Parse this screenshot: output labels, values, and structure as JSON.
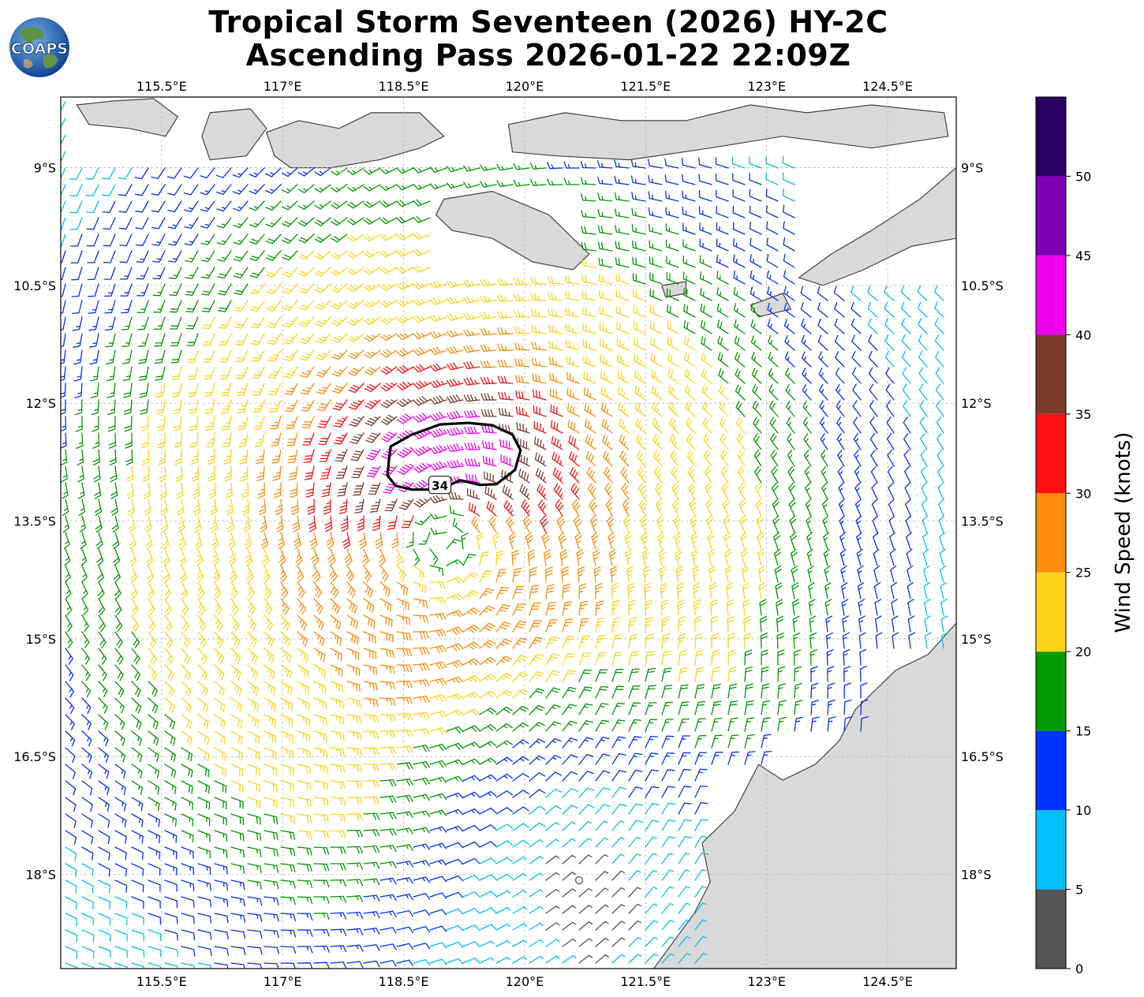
{
  "title": {
    "line1": "Tropical Storm Seventeen (2026) HY-2C",
    "line2": "Ascending Pass 2026-01-22 22:09Z"
  },
  "logo": {
    "text": "COAPS",
    "icon": "globe-logo"
  },
  "map": {
    "lon_range": [
      114.25,
      125.35
    ],
    "lat_range": [
      -19.2,
      -8.1
    ],
    "lon_ticks": [
      {
        "value": 115.5,
        "label": "115.5°E"
      },
      {
        "value": 117.0,
        "label": "117°E"
      },
      {
        "value": 118.5,
        "label": "118.5°E"
      },
      {
        "value": 120.0,
        "label": "120°E"
      },
      {
        "value": 121.5,
        "label": "121.5°E"
      },
      {
        "value": 123.0,
        "label": "123°E"
      },
      {
        "value": 124.5,
        "label": "124.5°E"
      }
    ],
    "lat_ticks": [
      {
        "value": -9.0,
        "label": "9°S"
      },
      {
        "value": -10.5,
        "label": "10.5°S"
      },
      {
        "value": -12.0,
        "label": "12°S"
      },
      {
        "value": -13.5,
        "label": "13.5°S"
      },
      {
        "value": -15.0,
        "label": "15°S"
      },
      {
        "value": -16.5,
        "label": "16.5°S"
      },
      {
        "value": -18.0,
        "label": "18°S"
      }
    ],
    "gridlines": true,
    "storm_center": {
      "lon": 119.0,
      "lat": -13.8
    },
    "contour_label": "34",
    "contour_34kt": [
      [
        118.34,
        -12.55
      ],
      [
        118.6,
        -12.4
      ],
      [
        118.95,
        -12.27
      ],
      [
        119.3,
        -12.25
      ],
      [
        119.6,
        -12.28
      ],
      [
        119.85,
        -12.4
      ],
      [
        119.95,
        -12.6
      ],
      [
        119.88,
        -12.85
      ],
      [
        119.65,
        -13.03
      ],
      [
        119.45,
        -13.04
      ],
      [
        119.2,
        -12.98
      ],
      [
        118.95,
        -13.1
      ],
      [
        118.6,
        -13.1
      ],
      [
        118.4,
        -13.05
      ],
      [
        118.3,
        -12.92
      ],
      [
        118.32,
        -12.7
      ]
    ],
    "land_color": "#d9d9d9",
    "coast_color": "#444444"
  },
  "wind_field": {
    "units": "knots",
    "vortex_center": {
      "lon": 119.0,
      "lat": -13.8
    },
    "max_speed_ring": "north of center, ~32-40 kt",
    "calm_region": "south-east near 120.5°E, 18°S"
  },
  "colorbar": {
    "label": "Wind Speed (knots)",
    "ticks": [
      0,
      5,
      10,
      15,
      20,
      25,
      30,
      35,
      40,
      45,
      50
    ],
    "bins": [
      {
        "from": 0,
        "to": 5,
        "color": "#555555"
      },
      {
        "from": 5,
        "to": 10,
        "color": "#00bfff"
      },
      {
        "from": 10,
        "to": 15,
        "color": "#0033ff"
      },
      {
        "from": 15,
        "to": 20,
        "color": "#009900"
      },
      {
        "from": 20,
        "to": 25,
        "color": "#ffd21a"
      },
      {
        "from": 25,
        "to": 30,
        "color": "#ff8c0a"
      },
      {
        "from": 30,
        "to": 35,
        "color": "#ff1010"
      },
      {
        "from": 35,
        "to": 40,
        "color": "#7a3b2a"
      },
      {
        "from": 40,
        "to": 45,
        "color": "#ee00ee"
      },
      {
        "from": 45,
        "to": 50,
        "color": "#7d00b4"
      },
      {
        "from": 50,
        "to": 55,
        "color": "#2b0060"
      }
    ]
  }
}
